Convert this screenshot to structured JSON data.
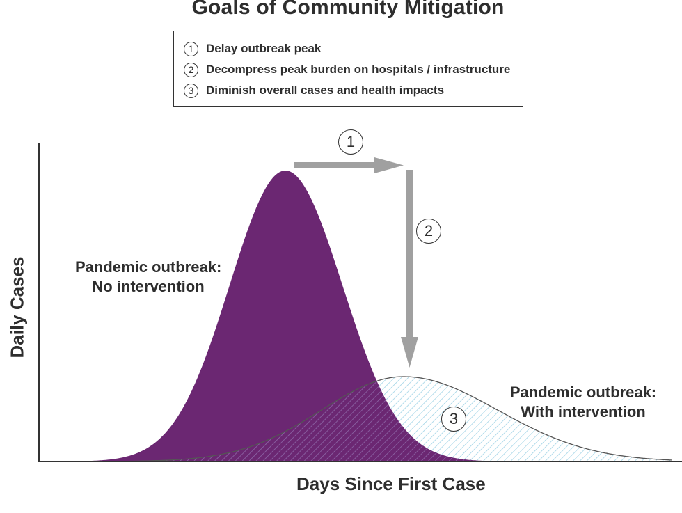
{
  "title": "Goals of Community Mitigation",
  "legend": [
    {
      "number": "1",
      "text": "Delay outbreak peak"
    },
    {
      "number": "2",
      "text": "Decompress peak burden on hospitals / infrastructure"
    },
    {
      "number": "3",
      "text": "Diminish overall cases and health impacts"
    }
  ],
  "callouts": {
    "delay": "1",
    "decompress": "2",
    "diminish": "3"
  },
  "curves": {
    "no_intervention": {
      "line1": "Pandemic outbreak:",
      "line2": "No intervention"
    },
    "with_intervention": {
      "line1": "Pandemic outbreak:",
      "line2": "With intervention"
    }
  },
  "axes": {
    "x_label": "Days Since First Case",
    "y_label": "Daily Cases"
  },
  "colors": {
    "no_intervention_fill": "#6b2772",
    "with_intervention_hatch": "#9fd3e6",
    "arrows": "#a0a0a0",
    "text": "#2e2e2e"
  }
}
